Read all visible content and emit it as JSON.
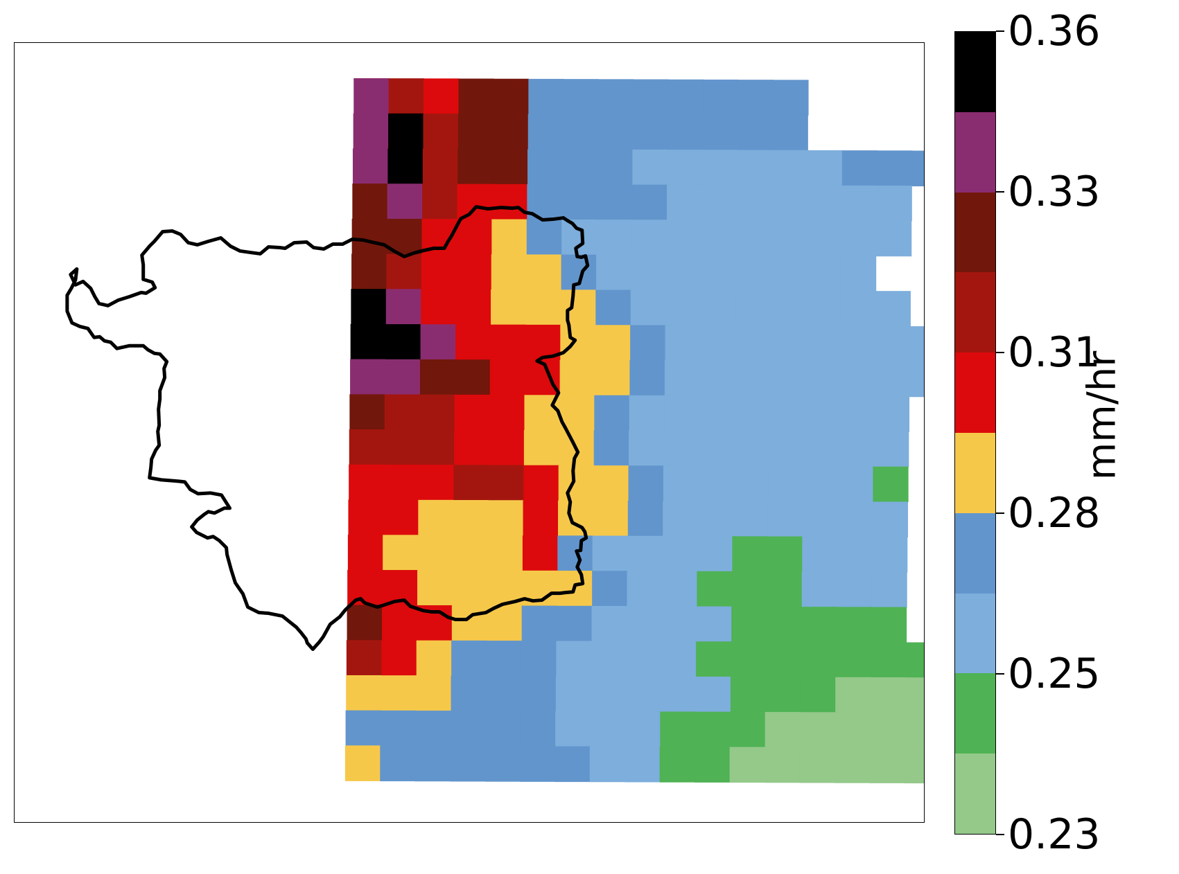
{
  "colorbar": {
    "label": "mm/hr",
    "tick_labels": [
      "0.36",
      "0.33",
      "0.31",
      "0.28",
      "0.25",
      "0.23"
    ],
    "colors_top_to_bottom": [
      "#000000",
      "#8a2d70",
      "#72170c",
      "#a3160f",
      "#dc0a0c",
      "#f6c84a",
      "#6295cc",
      "#7daedc",
      "#4fb254",
      "#94c98a"
    ]
  },
  "map": {
    "boundary_outline_color": "#000000",
    "nodata_color": "#ffffff",
    "grid_cols": 15,
    "grid_rows": 20,
    "grid_class_index_top_to_bottom": [
      "1342266666666",
      "1032266666666",
      "10322666777777666",
      "2134466667777777",
      "2244567777777777",
      "234455677777777",
      "0144555677777777",
      "001444556777777777",
      "112244556777777777",
      "2334455677777777",
      "3334455677777777",
      "4443345567777778",
      "4455545567777777",
      "4555546777788777",
      "4455555677888777",
      "2445566777788888",
      "345666777788888889",
      "55566677777888999",
      "666666777888999999",
      "566666677889999999"
    ]
  }
}
